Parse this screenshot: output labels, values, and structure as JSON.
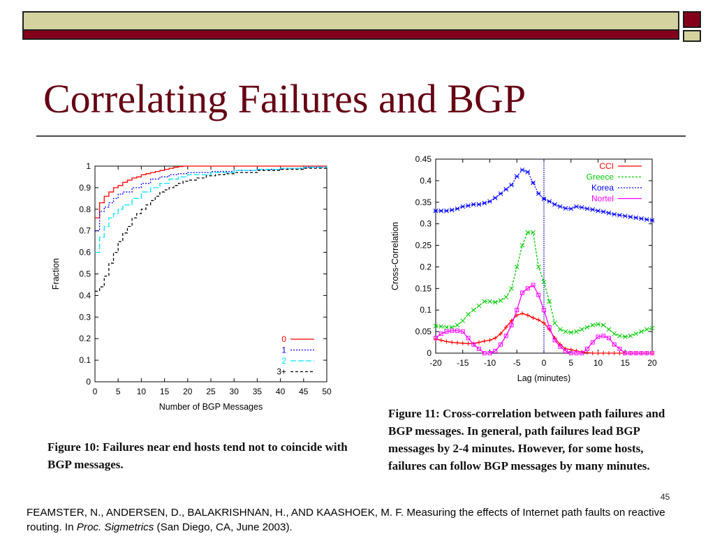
{
  "slide": {
    "title": "Correlating Failures and BGP",
    "page_number": "45",
    "colors": {
      "title": "#650013",
      "band_dark": "#84001a",
      "band_light": "#d4d3a0"
    }
  },
  "figure10": {
    "caption": "Figure 10: Failures near end hosts tend not to coincide with BGP messages."
  },
  "figure11": {
    "caption": "Figure 11: Cross-correlation between path failures and BGP messages. In general, path failures lead BGP messages by 2-4 minutes. However, for some hosts, failures can follow BGP messages by many minutes."
  },
  "footnote": {
    "text_before": "FEAMSTER, N., ANDERSEN, D., BALAKRISHNAN, H., AND KAASHOEK, M. F. Measuring the effects of Internet path faults on reactive routing. In ",
    "venue": "Proc. Sigmetrics",
    "text_after": " (San Diego, CA, June 2003)."
  },
  "chart_data": [
    {
      "type": "line",
      "xlabel": "Number of BGP Messages",
      "ylabel": "Fraction",
      "xlim": [
        0,
        50
      ],
      "ylim": [
        0,
        1
      ],
      "xticks": [
        0,
        5,
        10,
        15,
        20,
        25,
        30,
        35,
        40,
        45,
        50
      ],
      "yticks": [
        0,
        0.1,
        0.2,
        0.3,
        0.4,
        0.5,
        0.6,
        0.7,
        0.8,
        0.9,
        1
      ],
      "step": true,
      "legend_position": "bottom-right",
      "series": [
        {
          "name": "0",
          "color": "#ff0000",
          "dash": "",
          "x": [
            0,
            1,
            2,
            3,
            4,
            5,
            6,
            7,
            8,
            9,
            10,
            11,
            12,
            13,
            14,
            15,
            16,
            17,
            18,
            19,
            20
          ],
          "y": [
            0.76,
            0.83,
            0.86,
            0.88,
            0.9,
            0.91,
            0.925,
            0.935,
            0.945,
            0.95,
            0.96,
            0.965,
            0.97,
            0.975,
            0.98,
            0.985,
            0.99,
            0.995,
            0.998,
            1.0,
            1.0
          ]
        },
        {
          "name": "1",
          "color": "#0000ff",
          "dash": "2,2",
          "x": [
            0,
            1,
            2,
            3,
            4,
            5,
            6,
            8,
            10,
            12,
            14,
            16,
            18,
            20,
            25,
            30,
            35,
            40,
            45,
            50
          ],
          "y": [
            0.7,
            0.79,
            0.81,
            0.83,
            0.85,
            0.87,
            0.88,
            0.9,
            0.92,
            0.94,
            0.95,
            0.96,
            0.965,
            0.97,
            0.975,
            0.98,
            0.985,
            0.99,
            0.995,
            1.0
          ]
        },
        {
          "name": "2",
          "color": "#00e5ff",
          "dash": "8,3",
          "x": [
            0,
            1,
            2,
            3,
            4,
            5,
            6,
            8,
            10,
            12,
            14,
            16,
            18,
            20,
            25,
            30,
            35,
            40,
            45,
            50
          ],
          "y": [
            0.6,
            0.67,
            0.72,
            0.76,
            0.78,
            0.8,
            0.82,
            0.85,
            0.88,
            0.9,
            0.92,
            0.94,
            0.95,
            0.96,
            0.97,
            0.98,
            0.985,
            0.99,
            0.995,
            1.0
          ]
        },
        {
          "name": "3+",
          "color": "#000000",
          "dash": "4,3",
          "x": [
            0,
            1,
            2,
            3,
            4,
            5,
            6,
            7,
            8,
            9,
            10,
            11,
            12,
            13,
            14,
            15,
            16,
            17,
            18,
            19,
            20,
            22,
            24,
            26,
            28,
            30,
            35,
            40,
            45,
            50
          ],
          "y": [
            0.42,
            0.44,
            0.49,
            0.55,
            0.6,
            0.65,
            0.69,
            0.72,
            0.76,
            0.78,
            0.8,
            0.82,
            0.84,
            0.86,
            0.88,
            0.89,
            0.9,
            0.91,
            0.92,
            0.93,
            0.935,
            0.945,
            0.955,
            0.96,
            0.965,
            0.97,
            0.98,
            0.985,
            0.99,
            1.0
          ]
        }
      ]
    },
    {
      "type": "line",
      "xlabel": "Lag (minutes)",
      "ylabel": "Cross-Correlation",
      "xlim": [
        -20,
        20
      ],
      "ylim": [
        0,
        0.45
      ],
      "xticks": [
        -20,
        -15,
        -10,
        -5,
        0,
        5,
        10,
        15,
        20
      ],
      "yticks": [
        0,
        0.05,
        0.1,
        0.15,
        0.2,
        0.25,
        0.3,
        0.35,
        0.4,
        0.45
      ],
      "step": false,
      "vline_x": 0,
      "legend_position": "top-right",
      "series": [
        {
          "name": "CCI",
          "color": "#ff0000",
          "dash": "",
          "marker": "+",
          "x": [
            -20,
            -19,
            -18,
            -17,
            -16,
            -15,
            -14,
            -13,
            -12,
            -11,
            -10,
            -9,
            -8,
            -7,
            -6,
            -5,
            -4,
            -3,
            -2,
            -1,
            0,
            1,
            2,
            3,
            4,
            5,
            6,
            7,
            8,
            9,
            10,
            11,
            12,
            13,
            14,
            15,
            16,
            17,
            18,
            19,
            20
          ],
          "y": [
            0.033,
            0.03,
            0.027,
            0.025,
            0.024,
            0.023,
            0.022,
            0.022,
            0.025,
            0.028,
            0.03,
            0.035,
            0.045,
            0.06,
            0.075,
            0.088,
            0.092,
            0.088,
            0.082,
            0.077,
            0.07,
            0.055,
            0.035,
            0.02,
            0.01,
            0.008,
            0.005,
            0.003,
            0.001,
            0,
            0,
            0,
            0,
            0,
            0,
            0,
            0,
            0,
            0,
            0,
            0
          ]
        },
        {
          "name": "Greece",
          "color": "#00cc00",
          "dash": "3,2",
          "marker": "x",
          "x": [
            -20,
            -19,
            -18,
            -17,
            -16,
            -15,
            -14,
            -13,
            -12,
            -11,
            -10,
            -9,
            -8,
            -7,
            -6,
            -5,
            -4,
            -3,
            -2,
            -1,
            0,
            1,
            2,
            3,
            4,
            5,
            6,
            7,
            8,
            9,
            10,
            11,
            12,
            13,
            14,
            15,
            16,
            17,
            18,
            19,
            20
          ],
          "y": [
            0.063,
            0.062,
            0.06,
            0.06,
            0.065,
            0.075,
            0.09,
            0.1,
            0.11,
            0.12,
            0.12,
            0.118,
            0.122,
            0.13,
            0.15,
            0.2,
            0.25,
            0.28,
            0.28,
            0.2,
            0.165,
            0.12,
            0.07,
            0.055,
            0.05,
            0.048,
            0.05,
            0.055,
            0.06,
            0.065,
            0.067,
            0.065,
            0.055,
            0.045,
            0.04,
            0.038,
            0.04,
            0.045,
            0.05,
            0.055,
            0.058
          ]
        },
        {
          "name": "Korea",
          "color": "#0000ff",
          "dash": "2,2",
          "marker": "*",
          "x": [
            -20,
            -19,
            -18,
            -17,
            -16,
            -15,
            -14,
            -13,
            -12,
            -11,
            -10,
            -9,
            -8,
            -7,
            -6,
            -5,
            -4,
            -3,
            -2,
            -1,
            0,
            1,
            2,
            3,
            4,
            5,
            6,
            7,
            8,
            9,
            10,
            11,
            12,
            13,
            14,
            15,
            16,
            17,
            18,
            19,
            20
          ],
          "y": [
            0.33,
            0.33,
            0.33,
            0.332,
            0.335,
            0.34,
            0.342,
            0.345,
            0.345,
            0.348,
            0.352,
            0.36,
            0.37,
            0.38,
            0.39,
            0.41,
            0.425,
            0.42,
            0.395,
            0.37,
            0.358,
            0.352,
            0.345,
            0.34,
            0.336,
            0.335,
            0.34,
            0.338,
            0.335,
            0.333,
            0.33,
            0.328,
            0.325,
            0.322,
            0.32,
            0.318,
            0.316,
            0.314,
            0.312,
            0.31,
            0.308
          ]
        },
        {
          "name": "Nortel",
          "color": "#ff00ff",
          "dash": "",
          "marker": "square",
          "x": [
            -20,
            -19,
            -18,
            -17,
            -16,
            -15,
            -14,
            -13,
            -12,
            -11,
            -10,
            -9,
            -8,
            -7,
            -6,
            -5,
            -4,
            -3,
            -2,
            -1,
            0,
            1,
            2,
            3,
            4,
            5,
            6,
            7,
            8,
            9,
            10,
            11,
            12,
            13,
            14,
            15,
            16,
            17,
            18,
            19,
            20
          ],
          "y": [
            0.035,
            0.045,
            0.05,
            0.052,
            0.052,
            0.05,
            0.035,
            0.02,
            0.01,
            0.0,
            0.0,
            0.005,
            0.02,
            0.04,
            0.065,
            0.1,
            0.14,
            0.15,
            0.158,
            0.135,
            0.1,
            0.06,
            0.03,
            0.015,
            0.005,
            0.0,
            0.0,
            0.0,
            0.01,
            0.025,
            0.038,
            0.04,
            0.035,
            0.02,
            0.01,
            0.0,
            0.0,
            0.0,
            0.0,
            0.0,
            0.0
          ]
        }
      ]
    }
  ]
}
